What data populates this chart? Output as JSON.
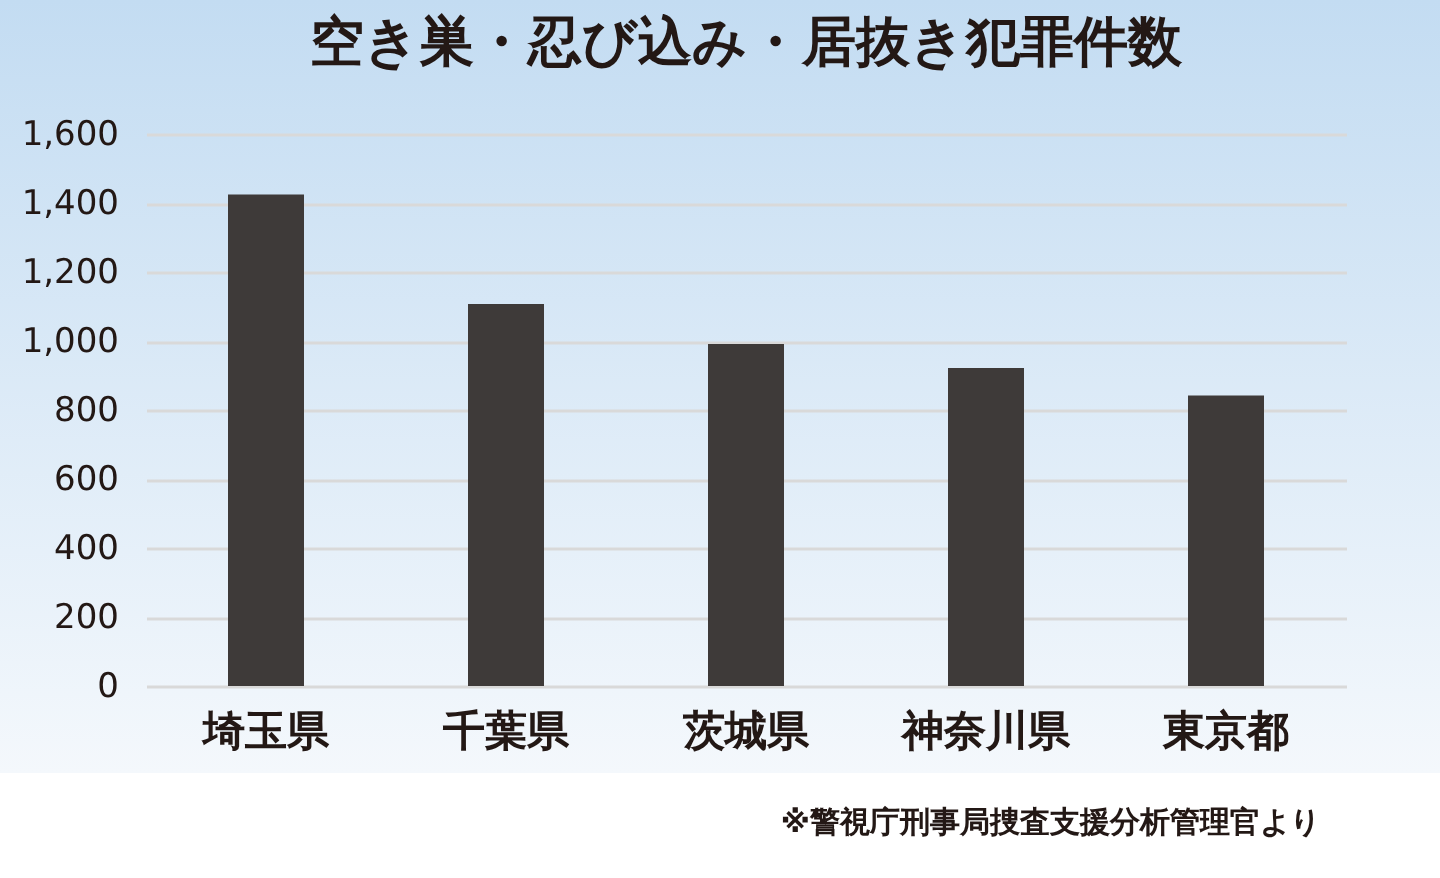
{
  "chart_data": {
    "type": "bar",
    "title": "空き巣・忍び込み・居抜き犯罪件数",
    "categories": [
      "埼玉県",
      "千葉県",
      "茨城県",
      "神奈川県",
      "東京都"
    ],
    "values": [
      1425,
      1107,
      991,
      922,
      842
    ],
    "color": "#3e3a39",
    "ylim": [
      0,
      1600
    ],
    "yticks": [
      0,
      200,
      400,
      600,
      800,
      {
        "value": 1000,
        "label": "1,000"
      },
      {
        "value": 1200,
        "label": "1,200"
      },
      {
        "value": 1400,
        "label": "1,400"
      },
      {
        "value": 1600,
        "label": "1,600"
      }
    ],
    "grid": "y",
    "annotations": [
      "※警視庁刑事局捜査支援分析管理官より"
    ]
  }
}
